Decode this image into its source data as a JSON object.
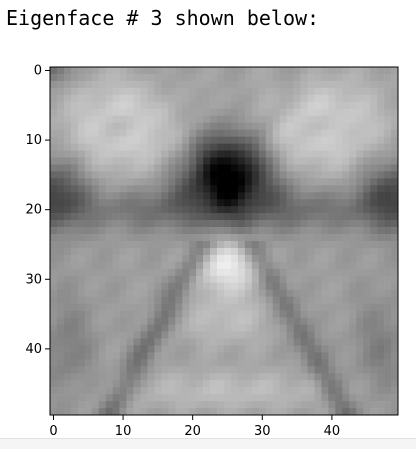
{
  "output": {
    "text": "Eigenface # 3 shown below:"
  },
  "chart_data": {
    "type": "heatmap",
    "colormap": "gray",
    "rows": 50,
    "cols": 50,
    "xlim": [
      -0.5,
      49.5
    ],
    "ylim": [
      49.5,
      -0.5
    ],
    "xticks": [
      0,
      10,
      20,
      30,
      40
    ],
    "yticks": [
      0,
      10,
      20,
      30,
      40
    ],
    "xtick_labels": [
      "0",
      "10",
      "20",
      "30",
      "40"
    ],
    "ytick_labels": [
      "0",
      "10",
      "20",
      "30",
      "40"
    ],
    "grid": false,
    "title": "",
    "xlabel": "",
    "ylabel": ""
  }
}
